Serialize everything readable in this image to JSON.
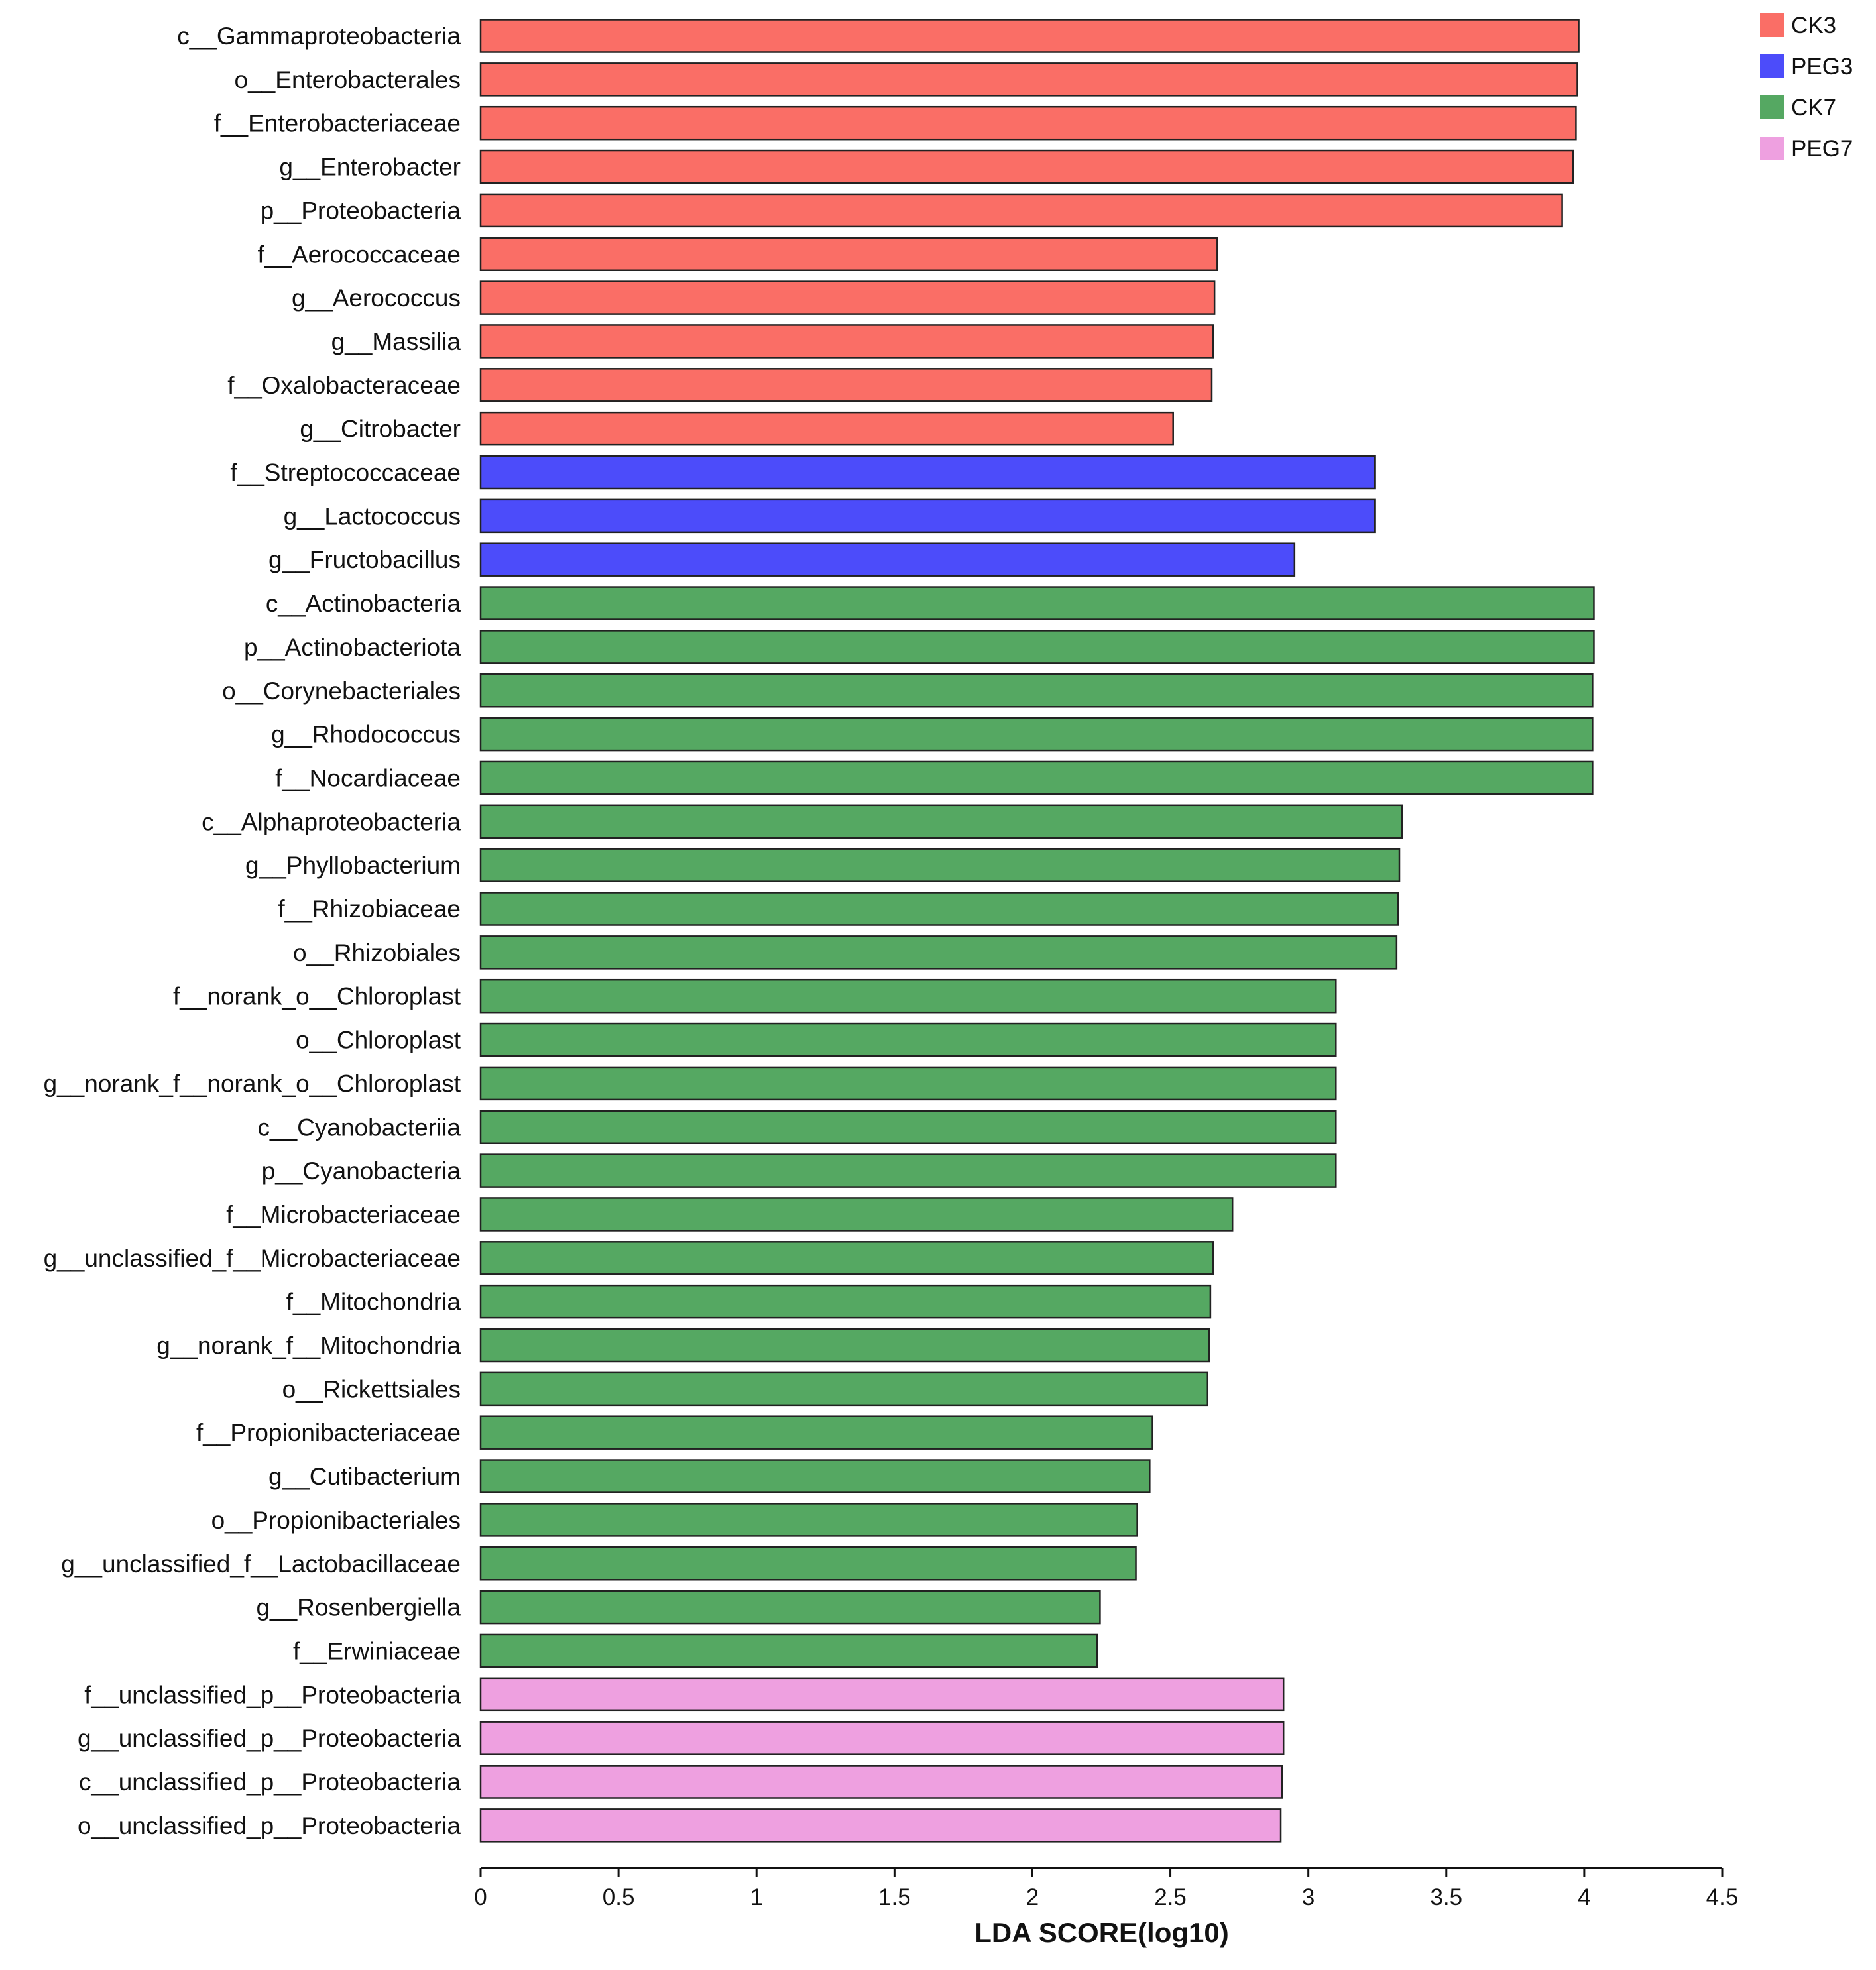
{
  "chart_data": {
    "type": "bar",
    "orientation": "horizontal",
    "title": "",
    "xlabel": "LDA SCORE(log10)",
    "ylabel": "",
    "xlim": [
      0,
      4.5
    ],
    "xticks": [
      "0",
      "0.5",
      "1",
      "1.5",
      "2",
      "2.5",
      "3",
      "3.5",
      "4",
      "4.5"
    ],
    "grid": false,
    "legend_position": "top-right",
    "groups": [
      {
        "name": "CK3",
        "color": "#fa6e66"
      },
      {
        "name": "PEG3",
        "color": "#4c4cfa"
      },
      {
        "name": "CK7",
        "color": "#55a862"
      },
      {
        "name": "PEG7",
        "color": "#eea0e0"
      }
    ],
    "bars": [
      {
        "label": "c__Gammaproteobacteria",
        "value": 3.98,
        "group": "CK3"
      },
      {
        "label": "o__Enterobacterales",
        "value": 3.975,
        "group": "CK3"
      },
      {
        "label": "f__Enterobacteriaceae",
        "value": 3.97,
        "group": "CK3"
      },
      {
        "label": "g__Enterobacter",
        "value": 3.96,
        "group": "CK3"
      },
      {
        "label": "p__Proteobacteria",
        "value": 3.92,
        "group": "CK3"
      },
      {
        "label": "f__Aerococcaceae",
        "value": 2.67,
        "group": "CK3"
      },
      {
        "label": "g__Aerococcus",
        "value": 2.66,
        "group": "CK3"
      },
      {
        "label": "g__Massilia",
        "value": 2.655,
        "group": "CK3"
      },
      {
        "label": "f__Oxalobacteraceae",
        "value": 2.65,
        "group": "CK3"
      },
      {
        "label": "g__Citrobacter",
        "value": 2.51,
        "group": "CK3"
      },
      {
        "label": "f__Streptococcaceae",
        "value": 3.24,
        "group": "PEG3"
      },
      {
        "label": "g__Lactococcus",
        "value": 3.24,
        "group": "PEG3"
      },
      {
        "label": "g__Fructobacillus",
        "value": 2.95,
        "group": "PEG3"
      },
      {
        "label": "c__Actinobacteria",
        "value": 4.035,
        "group": "CK7"
      },
      {
        "label": "p__Actinobacteriota",
        "value": 4.035,
        "group": "CK7"
      },
      {
        "label": "o__Corynebacteriales",
        "value": 4.03,
        "group": "CK7"
      },
      {
        "label": "g__Rhodococcus",
        "value": 4.03,
        "group": "CK7"
      },
      {
        "label": "f__Nocardiaceae",
        "value": 4.03,
        "group": "CK7"
      },
      {
        "label": "c__Alphaproteobacteria",
        "value": 3.34,
        "group": "CK7"
      },
      {
        "label": "g__Phyllobacterium",
        "value": 3.33,
        "group": "CK7"
      },
      {
        "label": "f__Rhizobiaceae",
        "value": 3.325,
        "group": "CK7"
      },
      {
        "label": "o__Rhizobiales",
        "value": 3.32,
        "group": "CK7"
      },
      {
        "label": "f__norank_o__Chloroplast",
        "value": 3.1,
        "group": "CK7"
      },
      {
        "label": "o__Chloroplast",
        "value": 3.1,
        "group": "CK7"
      },
      {
        "label": "g__norank_f__norank_o__Chloroplast",
        "value": 3.1,
        "group": "CK7"
      },
      {
        "label": "c__Cyanobacteriia",
        "value": 3.1,
        "group": "CK7"
      },
      {
        "label": "p__Cyanobacteria",
        "value": 3.1,
        "group": "CK7"
      },
      {
        "label": "f__Microbacteriaceae",
        "value": 2.725,
        "group": "CK7"
      },
      {
        "label": "g__unclassified_f__Microbacteriaceae",
        "value": 2.655,
        "group": "CK7"
      },
      {
        "label": "f__Mitochondria",
        "value": 2.645,
        "group": "CK7"
      },
      {
        "label": "g__norank_f__Mitochondria",
        "value": 2.64,
        "group": "CK7"
      },
      {
        "label": "o__Rickettsiales",
        "value": 2.635,
        "group": "CK7"
      },
      {
        "label": "f__Propionibacteriaceae",
        "value": 2.435,
        "group": "CK7"
      },
      {
        "label": "g__Cutibacterium",
        "value": 2.425,
        "group": "CK7"
      },
      {
        "label": "o__Propionibacteriales",
        "value": 2.38,
        "group": "CK7"
      },
      {
        "label": "g__unclassified_f__Lactobacillaceae",
        "value": 2.375,
        "group": "CK7"
      },
      {
        "label": "g__Rosenbergiella",
        "value": 2.245,
        "group": "CK7"
      },
      {
        "label": "f__Erwiniaceae",
        "value": 2.235,
        "group": "CK7"
      },
      {
        "label": "f__unclassified_p__Proteobacteria",
        "value": 2.91,
        "group": "PEG7"
      },
      {
        "label": "g__unclassified_p__Proteobacteria",
        "value": 2.91,
        "group": "PEG7"
      },
      {
        "label": "c__unclassified_p__Proteobacteria",
        "value": 2.905,
        "group": "PEG7"
      },
      {
        "label": "o__unclassified_p__Proteobacteria",
        "value": 2.9,
        "group": "PEG7"
      }
    ]
  }
}
